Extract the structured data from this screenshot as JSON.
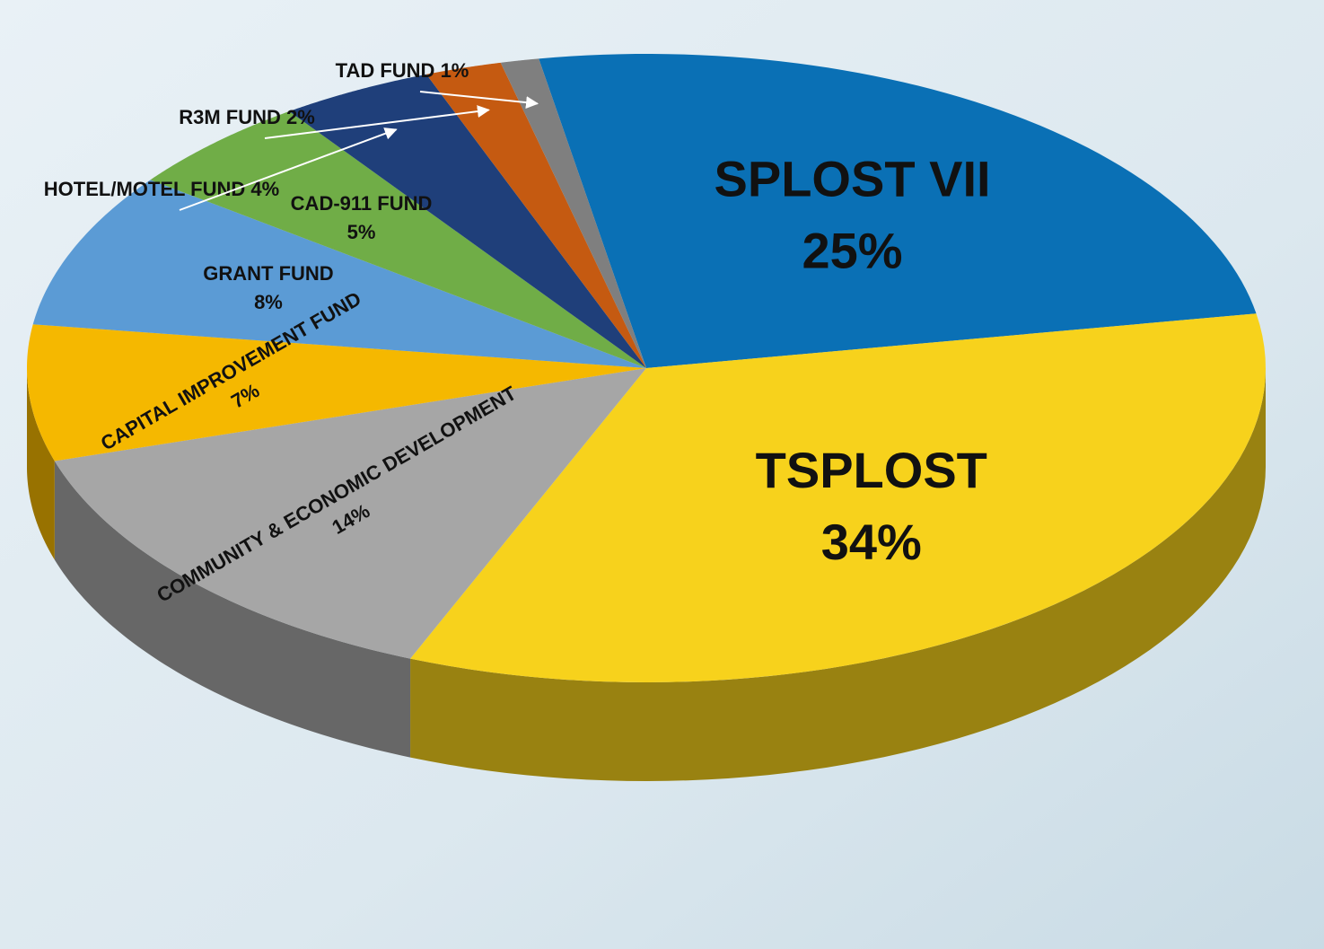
{
  "chart_data": {
    "type": "pie",
    "categories": [
      "SPLOST VII",
      "TSPLOST",
      "COMMUNITY & ECONOMIC DEVELOPMENT",
      "CAPITAL IMPROVEMENT FUND",
      "GRANT FUND",
      "CAD-911 FUND",
      "HOTEL/MOTEL FUND",
      "R3M FUND",
      "TAD FUND"
    ],
    "values": [
      25,
      34,
      14,
      7,
      8,
      5,
      4,
      2,
      1
    ],
    "value_labels": [
      "25%",
      "34%",
      "14%",
      "7%",
      "8%",
      "5%",
      "4%",
      "2%",
      "1%"
    ],
    "colors": [
      "#0a70b5",
      "#f7d21c",
      "#a6a6a6",
      "#f5b800",
      "#5b9bd5",
      "#70ad47",
      "#1f3f7a",
      "#c55a11",
      "#7f7f7f"
    ]
  }
}
